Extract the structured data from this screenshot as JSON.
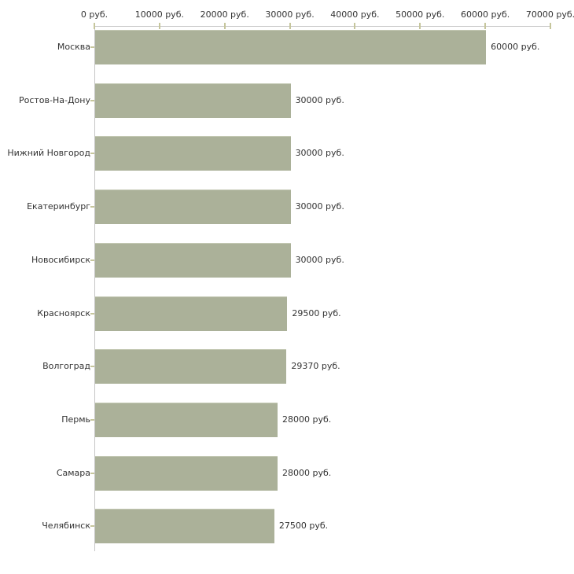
{
  "chart_data": {
    "type": "bar",
    "orientation": "horizontal",
    "unit": "руб.",
    "categories": [
      "Москва",
      "Ростов-На-Дону",
      "Нижний Новгород",
      "Екатеринбург",
      "Новосибирск",
      "Красноярск",
      "Волгоград",
      "Пермь",
      "Самара",
      "Челябинск"
    ],
    "values": [
      60000,
      30000,
      30000,
      30000,
      30000,
      29500,
      29370,
      28000,
      28000,
      27500
    ],
    "value_labels": [
      "60000 руб.",
      "30000 руб.",
      "30000 руб.",
      "30000 руб.",
      "30000 руб.",
      "29500 руб.",
      "29370 руб.",
      "28000 руб.",
      "28000 руб.",
      "27500 руб."
    ],
    "x_axis": {
      "position": "top",
      "min": 0,
      "max": 70000,
      "tick_step": 10000,
      "ticks": [
        0,
        10000,
        20000,
        30000,
        40000,
        50000,
        60000,
        70000
      ],
      "tick_labels": [
        "0 руб.",
        "10000 руб.",
        "20000 руб.",
        "30000 руб.",
        "40000 руб.",
        "50000 руб.",
        "60000 руб.",
        "70000 руб."
      ]
    },
    "grid": false,
    "legend": false,
    "colors": {
      "bar": "#abb199",
      "bar_edge": "#c3c8b3",
      "axis_line": "#c6c6c6",
      "tick_mark": "#c6c69c",
      "text": "#333333",
      "background": "#ffffff"
    }
  }
}
